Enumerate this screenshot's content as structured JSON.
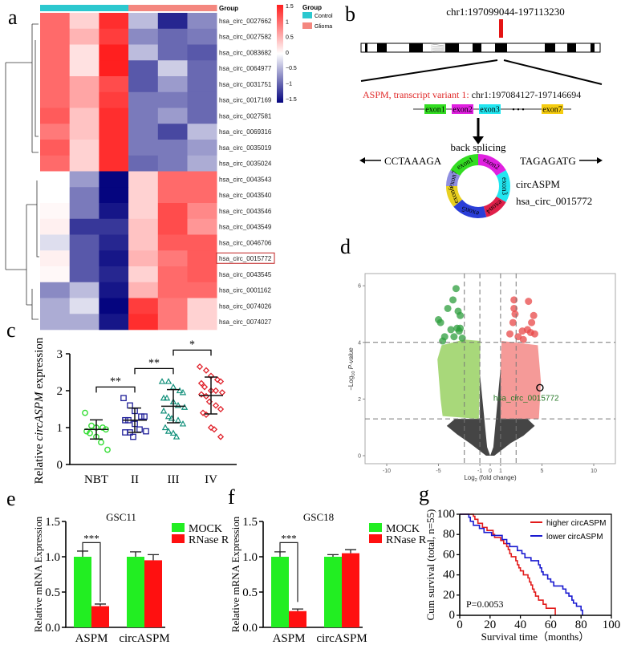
{
  "panel_labels": {
    "a": "a",
    "b": "b",
    "c": "c",
    "d": "d",
    "e": "e",
    "f": "f",
    "g": "g"
  },
  "colors": {
    "control": "#2cc8cf",
    "glioma": "#f4877f",
    "heat_low": "#05057f",
    "heat_mid": "#ffffff",
    "heat_high": "#ff1f1f",
    "mock": "#22ee22",
    "rnase": "#ff1010",
    "higher": "#e21b1b",
    "lower": "#1a1ad0"
  },
  "chart_data": [
    {
      "panel": "a",
      "type": "heatmap",
      "legend_title": "Group",
      "group_header": "Group",
      "groups": [
        "Control",
        "Control",
        "Control",
        "Glioma",
        "Glioma",
        "Glioma"
      ],
      "group_legend": [
        "Control",
        "Glioma"
      ],
      "colorbar_ticks": [
        "1.5",
        "1",
        "0.5",
        "0",
        "−0.5",
        "−1",
        "−1.5"
      ],
      "colorbar_range": [
        -1.5,
        1.5
      ],
      "highlighted_row": "hsa_circ_0015772",
      "rows": [
        {
          "name": "hsa_circ_0027662",
          "values": [
            1.0,
            0.3,
            1.4,
            -0.4,
            -1.3,
            -0.7
          ]
        },
        {
          "name": "hsa_circ_0027582",
          "values": [
            1.0,
            0.5,
            1.3,
            -0.7,
            -0.9,
            -0.8
          ]
        },
        {
          "name": "hsa_circ_0083682",
          "values": [
            1.0,
            0.2,
            1.5,
            -0.4,
            -0.9,
            -1.0
          ]
        },
        {
          "name": "hsa_circ_0064977",
          "values": [
            1.0,
            0.2,
            1.5,
            -1.0,
            -0.3,
            -0.9
          ]
        },
        {
          "name": "hsa_circ_0031751",
          "values": [
            1.0,
            0.6,
            1.2,
            -1.0,
            -0.6,
            -0.9
          ]
        },
        {
          "name": "hsa_circ_0017169",
          "values": [
            1.0,
            0.6,
            1.3,
            -0.8,
            -0.8,
            -0.9
          ]
        },
        {
          "name": "hsa_circ_0027581",
          "values": [
            1.1,
            0.4,
            1.4,
            -0.8,
            -0.6,
            -0.9
          ]
        },
        {
          "name": "hsa_circ_0069316",
          "values": [
            0.9,
            0.4,
            1.4,
            -0.8,
            -1.1,
            -0.4
          ]
        },
        {
          "name": "hsa_circ_0035019",
          "values": [
            1.1,
            0.3,
            1.4,
            -0.8,
            -0.8,
            -0.6
          ]
        },
        {
          "name": "hsa_circ_0035024",
          "values": [
            1.0,
            0.3,
            1.4,
            -0.9,
            -0.8,
            -0.5
          ]
        },
        {
          "name": "hsa_circ_0043543",
          "values": [
            0.0,
            -0.6,
            -1.6,
            0.3,
            1.0,
            1.0
          ]
        },
        {
          "name": "hsa_circ_0043540",
          "values": [
            0.0,
            -0.8,
            -1.5,
            0.3,
            1.0,
            1.0
          ]
        },
        {
          "name": "hsa_circ_0043546",
          "values": [
            0.05,
            -0.8,
            -1.4,
            0.3,
            1.2,
            0.8
          ]
        },
        {
          "name": "hsa_circ_0043549",
          "values": [
            0.1,
            -1.2,
            -1.2,
            0.4,
            1.2,
            0.7
          ]
        },
        {
          "name": "hsa_circ_0046706",
          "values": [
            -0.2,
            -1.0,
            -1.3,
            0.4,
            1.1,
            1.1
          ]
        },
        {
          "name": "hsa_circ_0015772",
          "values": [
            0.1,
            -1.0,
            -1.4,
            0.5,
            0.9,
            1.1
          ]
        },
        {
          "name": "hsa_circ_0043545",
          "values": [
            0.05,
            -1.0,
            -1.3,
            0.3,
            1.0,
            1.1
          ]
        },
        {
          "name": "hsa_circ_0001162",
          "values": [
            -0.7,
            -0.4,
            -1.4,
            0.5,
            1.0,
            1.0
          ]
        },
        {
          "name": "hsa_circ_0074026",
          "values": [
            -0.5,
            -0.2,
            -1.6,
            1.3,
            0.9,
            0.3
          ]
        },
        {
          "name": "hsa_circ_0074027",
          "values": [
            -0.5,
            -0.5,
            -1.4,
            1.4,
            0.9,
            0.3
          ]
        }
      ]
    },
    {
      "panel": "c",
      "type": "scatter",
      "ylabel_pre": "Relative ",
      "ylabel_italic": "circASPM",
      "ylabel_post": " expression",
      "ylim": [
        0,
        3
      ],
      "yticks": [
        "0",
        "1",
        "2",
        "3"
      ],
      "categories": [
        "NBT",
        "II",
        "III",
        "IV"
      ],
      "groups": [
        {
          "name": "NBT",
          "marker": "circle",
          "color": "#33dd33",
          "mean": 0.95,
          "sd": 0.26,
          "values": [
            1.4,
            1.05,
            1.0,
            1.0,
            0.95,
            0.9,
            0.85,
            0.75,
            0.6,
            0.4
          ]
        },
        {
          "name": "II",
          "marker": "square",
          "color": "#1f1f99",
          "mean": 1.2,
          "sd": 0.33,
          "values": [
            1.8,
            1.6,
            1.45,
            1.3,
            1.3,
            1.2,
            1.2,
            1.1,
            0.95,
            0.9,
            0.87,
            0.87,
            0.75
          ]
        },
        {
          "name": "III",
          "marker": "triangle",
          "color": "#14917c",
          "mean": 1.58,
          "sd": 0.45,
          "values": [
            2.25,
            2.25,
            2.1,
            2.0,
            1.95,
            1.8,
            1.8,
            1.7,
            1.6,
            1.55,
            1.45,
            1.3,
            1.25,
            1.2,
            1.1,
            1.0,
            0.9,
            0.85,
            0.75
          ]
        },
        {
          "name": "IV",
          "marker": "diamond",
          "color": "#e0202a",
          "mean": 1.87,
          "sd": 0.5,
          "values": [
            2.65,
            2.55,
            2.4,
            2.3,
            2.25,
            2.2,
            2.1,
            2.0,
            2.0,
            1.95,
            1.9,
            1.85,
            1.7,
            1.6,
            1.5,
            1.4,
            1.35,
            1.0,
            0.95,
            0.75
          ]
        }
      ],
      "comparisons": [
        {
          "from": "NBT",
          "to": "II",
          "level": 2.1,
          "label": "**"
        },
        {
          "from": "II",
          "to": "III",
          "level": 2.6,
          "label": "**"
        },
        {
          "from": "III",
          "to": "IV",
          "level": 3.1,
          "label": "*"
        }
      ]
    },
    {
      "panel": "d",
      "type": "scatter",
      "ylabel_pre": "−Log",
      "ylabel_sub": "10",
      "ylabel_italic": " P-value",
      "xlabel_pre": "Log",
      "xlabel_sub": "2",
      "xlabel_post": " (fold change)",
      "xlim": [
        -12.1,
        12.1
      ],
      "ylim": [
        -0.28,
        6.4
      ],
      "xticks": [
        "-10",
        "-5",
        "-1",
        "0",
        "1",
        "5",
        "10"
      ],
      "yticks": [
        "0",
        "2",
        "4",
        "6"
      ],
      "vlines": [
        -2.5,
        -1,
        1,
        2.5
      ],
      "hlines": [
        1.3,
        4
      ],
      "down_significant": [
        [
          -3.3,
          5.9
        ],
        [
          -3.6,
          5.5
        ],
        [
          -4.1,
          5.2
        ],
        [
          -3.1,
          5.1
        ],
        [
          -2.9,
          4.95
        ],
        [
          -5,
          4.8
        ],
        [
          -4.8,
          4.7
        ],
        [
          -3.2,
          4.5
        ],
        [
          -3,
          4.4
        ],
        [
          -3.8,
          4.45
        ],
        [
          -3.5,
          4.2
        ],
        [
          -2.7,
          4.15
        ],
        [
          -4.4,
          4.2
        ],
        [
          -4.6,
          4.05
        ],
        [
          -2.9,
          4.5
        ]
      ],
      "up_significant": [
        [
          2.3,
          5.5
        ],
        [
          3.7,
          5.45
        ],
        [
          2.3,
          5.2
        ],
        [
          2.4,
          5.0
        ],
        [
          4.2,
          4.95
        ],
        [
          2.2,
          4.7
        ],
        [
          4,
          4.7
        ],
        [
          3.9,
          4.35
        ],
        [
          3.6,
          4.45
        ],
        [
          3.1,
          4.4
        ],
        [
          4.3,
          4.3
        ],
        [
          2.7,
          4.2
        ],
        [
          3.2,
          4.1
        ],
        [
          1.9,
          4.3
        ]
      ],
      "highlight": {
        "label": "hsa_circ_0015772",
        "x": 4.8,
        "y": 2.4
      }
    },
    {
      "panel": "e",
      "type": "bar",
      "title": "GSC11",
      "ylabel": "Relative mRNA Expression",
      "ylim": [
        0,
        1.5
      ],
      "yticks": [
        "0.0",
        "0.5",
        "1.0",
        "1.5"
      ],
      "categories": [
        "ASPM",
        "circASPM"
      ],
      "series": [
        {
          "name": "MOCK",
          "values": [
            1.0,
            1.0
          ],
          "errors": [
            0.08,
            0.07
          ]
        },
        {
          "name": "RNase R",
          "values": [
            0.3,
            0.95
          ],
          "errors": [
            0.03,
            0.08
          ]
        }
      ],
      "significance": "***"
    },
    {
      "panel": "f",
      "type": "bar",
      "title": "GSC18",
      "ylabel": "Relative mRNA Expression",
      "ylim": [
        0,
        1.5
      ],
      "yticks": [
        "0.0",
        "0.5",
        "1.0",
        "1.5"
      ],
      "categories": [
        "ASPM",
        "circASPM"
      ],
      "series": [
        {
          "name": "MOCK",
          "values": [
            1.0,
            1.0
          ],
          "errors": [
            0.07,
            0.03
          ]
        },
        {
          "name": "RNase R",
          "values": [
            0.23,
            1.05
          ],
          "errors": [
            0.03,
            0.05
          ]
        }
      ],
      "significance": "***"
    },
    {
      "panel": "g",
      "type": "line",
      "ylabel": "Cum survival (total, n=55)",
      "xlabel": "Survival time（months）",
      "xlim": [
        0,
        100
      ],
      "ylim": [
        0,
        100
      ],
      "xticks": [
        "0",
        "20",
        "40",
        "60",
        "80",
        "100"
      ],
      "yticks": [
        "0",
        "20",
        "40",
        "60",
        "80",
        "100"
      ],
      "annotation": "P=0.0053",
      "series": [
        {
          "name": "higher circASPM",
          "points": [
            [
              0,
              100
            ],
            [
              9,
              98
            ],
            [
              10,
              95
            ],
            [
              12,
              91
            ],
            [
              15,
              87
            ],
            [
              18,
              84
            ],
            [
              22,
              80
            ],
            [
              23,
              77
            ],
            [
              27,
              74
            ],
            [
              29,
              71
            ],
            [
              31,
              68
            ],
            [
              32,
              65
            ],
            [
              33,
              61
            ],
            [
              34,
              58
            ],
            [
              37,
              54
            ],
            [
              38,
              50
            ],
            [
              39,
              47
            ],
            [
              40,
              44
            ],
            [
              42,
              40
            ],
            [
              45,
              37
            ],
            [
              46,
              33
            ],
            [
              47,
              30
            ],
            [
              48,
              26
            ],
            [
              49,
              23
            ],
            [
              50,
              19
            ],
            [
              52,
              15
            ],
            [
              55,
              11
            ],
            [
              57,
              7
            ],
            [
              63,
              4
            ],
            [
              63,
              0
            ]
          ]
        },
        {
          "name": "lower circASPM",
          "points": [
            [
              0,
              100
            ],
            [
              6,
              97
            ],
            [
              7,
              93
            ],
            [
              9,
              89
            ],
            [
              13,
              86
            ],
            [
              16,
              82
            ],
            [
              21,
              79
            ],
            [
              28,
              75
            ],
            [
              31,
              71
            ],
            [
              33,
              68
            ],
            [
              38,
              64
            ],
            [
              41,
              61
            ],
            [
              43,
              57
            ],
            [
              47,
              54
            ],
            [
              52,
              50
            ],
            [
              53,
              47
            ],
            [
              54,
              43
            ],
            [
              55,
              40
            ],
            [
              58,
              36
            ],
            [
              60,
              33
            ],
            [
              62,
              29
            ],
            [
              68,
              26
            ],
            [
              70,
              22
            ],
            [
              72,
              19
            ],
            [
              74,
              15
            ],
            [
              75,
              12
            ],
            [
              77,
              9
            ],
            [
              80,
              5
            ],
            [
              81,
              0
            ]
          ]
        }
      ]
    }
  ],
  "diagram_b": {
    "locus": "chr1:197099044-197113230",
    "transcript_label": "ASPM, transcript variant 1:",
    "transcript_coords": " chr1:197084127-197146694",
    "linear_exons": [
      {
        "name": "exon1",
        "color": "#33dd22"
      },
      {
        "name": "exon2",
        "color": "#e020e0"
      },
      {
        "name": "exon3",
        "color": "#22e6f0"
      },
      {
        "name": "exon7",
        "color": "#f5cc10"
      }
    ],
    "dots": "•  •  •",
    "back_splicing": "back splicing",
    "left_seq": "CCTAAAGA",
    "right_seq": "TAGAGATG",
    "circ_name": "circASPM",
    "circ_id": "hsa_circ_0015772",
    "ring_exons": [
      {
        "name": "exon1",
        "color": "#33dd22"
      },
      {
        "name": "exon2",
        "color": "#e020e0"
      },
      {
        "name": "exon3",
        "color": "#22e6f0"
      },
      {
        "name": "exon4",
        "color": "#e0204a"
      },
      {
        "name": "exon5",
        "color": "#2a3ed8"
      },
      {
        "name": "exon6",
        "color": "#e8d020"
      },
      {
        "name": "exon7",
        "color": "#8e8ee0"
      }
    ]
  }
}
